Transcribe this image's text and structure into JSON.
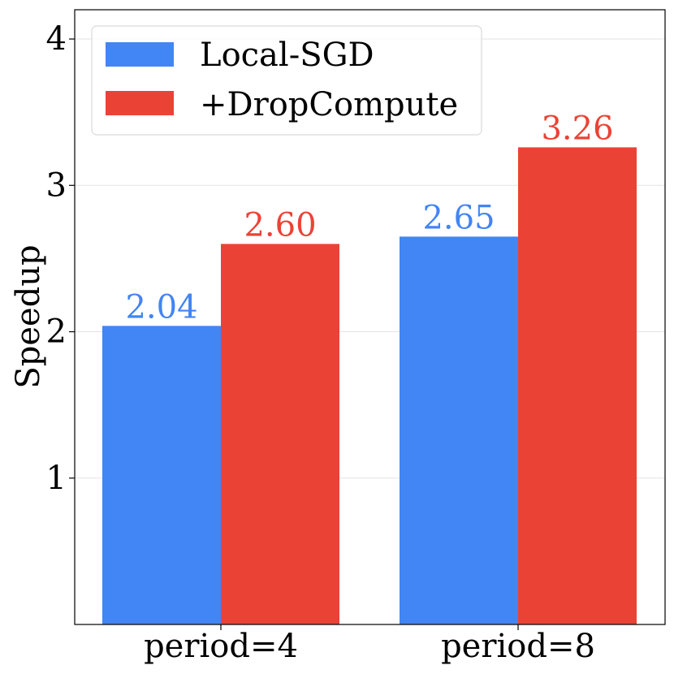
{
  "chart_data": {
    "type": "bar",
    "categories": [
      "period=4",
      "period=8"
    ],
    "series": [
      {
        "name": "Local-SGD",
        "values": [
          2.04,
          2.65
        ],
        "labels": [
          "2.04",
          "2.65"
        ],
        "color": "#4285f4"
      },
      {
        "name": "+DropCompute",
        "values": [
          2.6,
          3.26
        ],
        "labels": [
          "2.60",
          "3.26"
        ],
        "color": "#ea4335"
      }
    ],
    "title": "",
    "xlabel": "",
    "ylabel": "Speedup",
    "ylim": [
      0,
      4.2
    ],
    "yticks": [
      1,
      2,
      3,
      4
    ],
    "ytick_labels": [
      "1",
      "2",
      "3",
      "4"
    ],
    "grid": "horizontal",
    "legend_position": "top-left"
  }
}
